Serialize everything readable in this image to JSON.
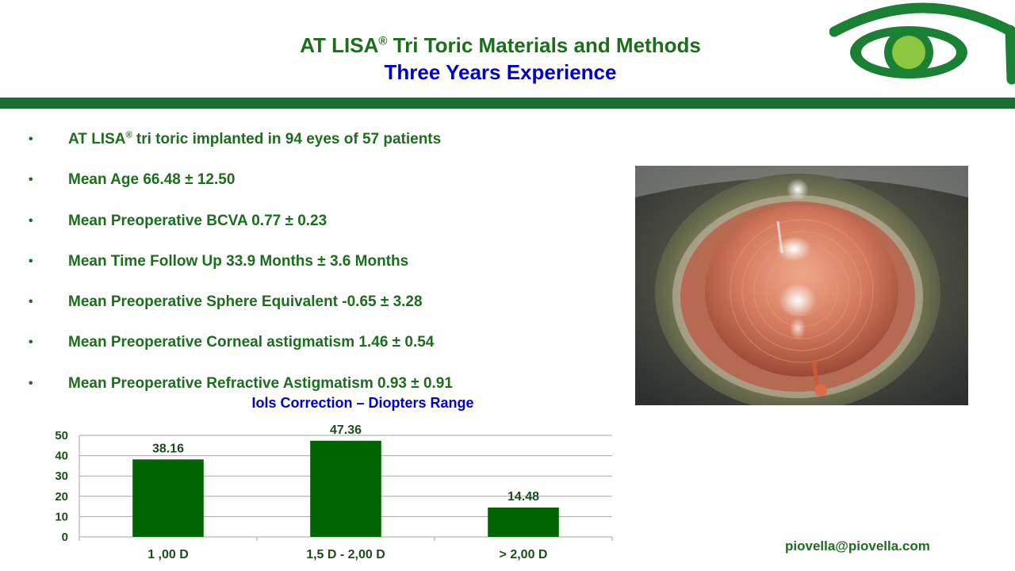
{
  "header": {
    "title_main": "AT LISA",
    "title_sup": "®",
    "title_rest": " Tri Toric Materials and Methods",
    "subtitle": "Three Years Experience"
  },
  "logo": {
    "icon": "eye-logo",
    "colors": {
      "ring": "#1a8034",
      "iris": "#8dc63f"
    }
  },
  "bullets": [
    {
      "pre": "AT LISA",
      "sup": "®",
      "post": " tri toric implanted in 94 eyes of 57 patients"
    },
    {
      "pre": "Mean  Age 66.48 ± 12.50",
      "sup": "",
      "post": ""
    },
    {
      "pre": "Mean Preoperative BCVA 0.77 ± 0.23",
      "sup": "",
      "post": ""
    },
    {
      "pre": "Mean Time Follow Up 33.9 Months ± 3.6 Months",
      "sup": "",
      "post": ""
    },
    {
      "pre": "Mean Preoperative Sphere Equivalent -0.65 ± 3.28",
      "sup": "",
      "post": ""
    },
    {
      "pre": "Mean Preoperative Corneal astigmatism 1.46 ± 0.54",
      "sup": "",
      "post": ""
    },
    {
      "pre": "Mean Preoperative Refractive Astigmatism 0.93 ± 0.91",
      "sup": "",
      "post": ""
    }
  ],
  "bullet_symbol": "•",
  "photo": {
    "subject": "slit-lamp photo of implanted toric IOL"
  },
  "chart_data": {
    "type": "bar",
    "title": "Iols Correction – Diopters Range",
    "categories": [
      "1 ,00 D",
      "1,5 D - 2,00 D",
      "> 2,00 D"
    ],
    "values": [
      38.16,
      47.36,
      14.48
    ],
    "data_labels": [
      "38.16",
      "47.36",
      "14.48"
    ],
    "ylim": [
      0,
      50
    ],
    "yticks": [
      0,
      10,
      20,
      30,
      40,
      50
    ],
    "grid": true,
    "legend": "none",
    "colors": {
      "bar": "#006400",
      "text": "#1b4d1b",
      "grid": "#a6a6a6"
    }
  },
  "footer": {
    "email": "piovella@piovella.com"
  },
  "colors": {
    "title_green": "#1b6e1b",
    "subtitle_blue": "#0000cc",
    "band": "#1a6e34"
  }
}
